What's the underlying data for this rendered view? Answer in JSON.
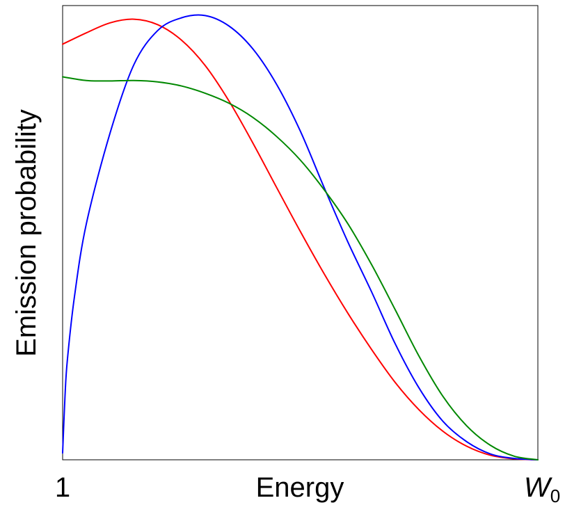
{
  "chart_data": {
    "type": "line",
    "xlabel": "Energy",
    "ylabel": "Emission probability",
    "x_tick_labels": {
      "min": "1",
      "max_main": "W",
      "max_sub": "0"
    },
    "xlim": [
      0,
      1
    ],
    "ylim": [
      0,
      1
    ],
    "grid": false,
    "legend": "none",
    "series": [
      {
        "color": "#ff0000",
        "points": [
          [
            0,
            0.915
          ],
          [
            0.05,
            0.94
          ],
          [
            0.1,
            0.962
          ],
          [
            0.15,
            0.97
          ],
          [
            0.2,
            0.958
          ],
          [
            0.25,
            0.924
          ],
          [
            0.3,
            0.868
          ],
          [
            0.35,
            0.79
          ],
          [
            0.4,
            0.698
          ],
          [
            0.45,
            0.6
          ],
          [
            0.5,
            0.503
          ],
          [
            0.55,
            0.41
          ],
          [
            0.6,
            0.323
          ],
          [
            0.65,
            0.243
          ],
          [
            0.7,
            0.17
          ],
          [
            0.75,
            0.11
          ],
          [
            0.8,
            0.063
          ],
          [
            0.85,
            0.03
          ],
          [
            0.9,
            0.01
          ],
          [
            0.95,
            0.002
          ],
          [
            1,
            0
          ]
        ]
      },
      {
        "color": "#0000ff",
        "points": [
          [
            0,
            0.015
          ],
          [
            0.005,
            0.14
          ],
          [
            0.01,
            0.22
          ],
          [
            0.025,
            0.36
          ],
          [
            0.05,
            0.52
          ],
          [
            0.1,
            0.72
          ],
          [
            0.15,
            0.87
          ],
          [
            0.2,
            0.945
          ],
          [
            0.25,
            0.973
          ],
          [
            0.3,
            0.978
          ],
          [
            0.35,
            0.955
          ],
          [
            0.4,
            0.905
          ],
          [
            0.45,
            0.827
          ],
          [
            0.5,
            0.724
          ],
          [
            0.55,
            0.6
          ],
          [
            0.6,
            0.48
          ],
          [
            0.65,
            0.37
          ],
          [
            0.7,
            0.255
          ],
          [
            0.75,
            0.158
          ],
          [
            0.8,
            0.085
          ],
          [
            0.85,
            0.04
          ],
          [
            0.9,
            0.013
          ],
          [
            0.95,
            0.003
          ],
          [
            1,
            0
          ]
        ]
      },
      {
        "color": "#008800",
        "points": [
          [
            0,
            0.843
          ],
          [
            0.05,
            0.835
          ],
          [
            0.1,
            0.834
          ],
          [
            0.15,
            0.835
          ],
          [
            0.2,
            0.832
          ],
          [
            0.25,
            0.823
          ],
          [
            0.3,
            0.807
          ],
          [
            0.35,
            0.785
          ],
          [
            0.4,
            0.754
          ],
          [
            0.45,
            0.712
          ],
          [
            0.5,
            0.66
          ],
          [
            0.55,
            0.595
          ],
          [
            0.6,
            0.52
          ],
          [
            0.65,
            0.43
          ],
          [
            0.7,
            0.33
          ],
          [
            0.75,
            0.228
          ],
          [
            0.8,
            0.14
          ],
          [
            0.85,
            0.075
          ],
          [
            0.9,
            0.032
          ],
          [
            0.95,
            0.008
          ],
          [
            1,
            0
          ]
        ]
      }
    ]
  }
}
